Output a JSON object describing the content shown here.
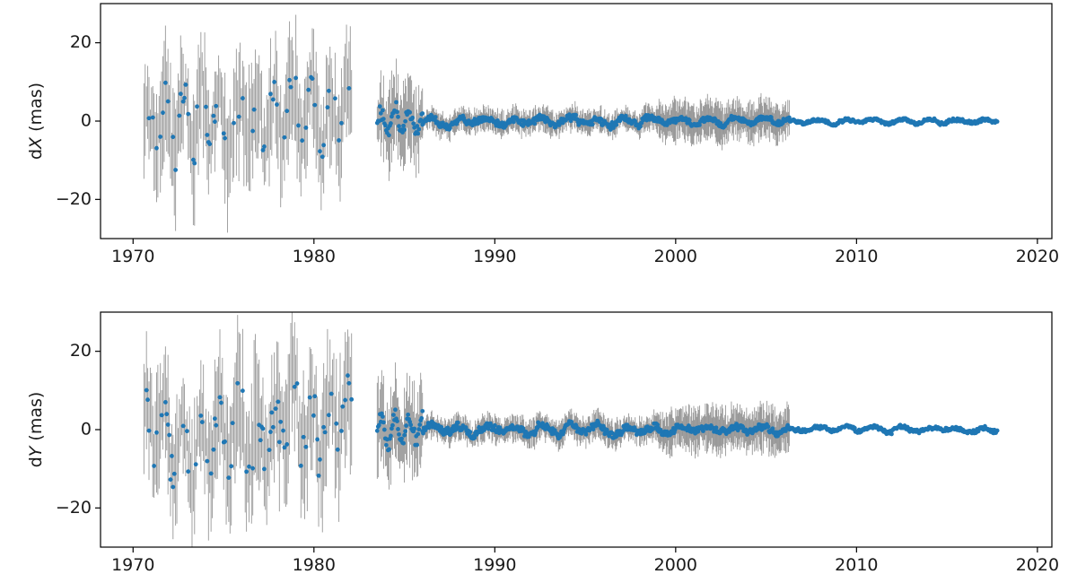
{
  "chart_data": [
    {
      "type": "scatter",
      "ylabel_prefix": "d",
      "ylabel_var": "X",
      "ylabel_unit": " (mas)",
      "xlim": [
        1968.2,
        2020.8
      ],
      "ylim": [
        -30,
        30
      ],
      "xticks": [
        "1970",
        "1980",
        "1990",
        "2000",
        "2010",
        "2020"
      ],
      "yticks": [
        "20",
        "0",
        "−20"
      ],
      "ytick_values": [
        20,
        0,
        -20
      ],
      "grid": false,
      "series": [
        {
          "values_note": "",
          "color": "#1f77b4"
        }
      ],
      "errorbar_color": "#8c8c8c",
      "segments": [
        {
          "start": 1970.6,
          "end": 1982.1,
          "amplitude": 9.5,
          "error": 14,
          "step": 0.07
        },
        {
          "start": 1983.5,
          "end": 1986.0,
          "amplitude": 5.0,
          "error": 10,
          "step": 0.05
        },
        {
          "start": 1986.0,
          "end": 1999.0,
          "amplitude": 1.4,
          "error": 3.0,
          "step": 0.04
        },
        {
          "start": 1999.0,
          "end": 2006.3,
          "amplitude": 1.1,
          "error": 5.0,
          "step": 0.04
        },
        {
          "start": 2006.3,
          "end": 2017.8,
          "amplitude": 0.7,
          "error": 0.2,
          "step": 0.04
        }
      ]
    },
    {
      "type": "scatter",
      "ylabel_prefix": "d",
      "ylabel_var": "Y",
      "ylabel_unit": " (mas)",
      "xlim": [
        1968.2,
        2020.8
      ],
      "ylim": [
        -30,
        30
      ],
      "xticks": [
        "1970",
        "1980",
        "1990",
        "2000",
        "2010",
        "2020"
      ],
      "yticks": [
        "20",
        "0",
        "−20"
      ],
      "ytick_values": [
        20,
        0,
        -20
      ],
      "grid": false,
      "series": [
        {
          "values_note": "",
          "color": "#1f77b4"
        }
      ],
      "errorbar_color": "#8c8c8c",
      "segments": [
        {
          "start": 1970.6,
          "end": 1982.1,
          "amplitude": 11.0,
          "error": 15,
          "step": 0.07
        },
        {
          "start": 1983.5,
          "end": 1986.0,
          "amplitude": 5.5,
          "error": 11,
          "step": 0.05
        },
        {
          "start": 1986.0,
          "end": 1999.0,
          "amplitude": 1.6,
          "error": 3.2,
          "step": 0.04
        },
        {
          "start": 1999.0,
          "end": 2006.3,
          "amplitude": 1.3,
          "error": 5.5,
          "step": 0.04
        },
        {
          "start": 2006.3,
          "end": 2017.8,
          "amplitude": 0.8,
          "error": 0.2,
          "step": 0.04
        }
      ]
    }
  ]
}
